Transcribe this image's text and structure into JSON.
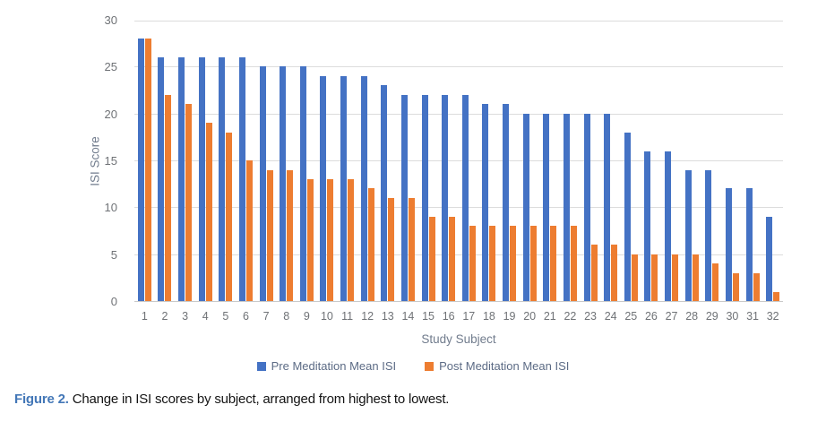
{
  "figure": {
    "label": "Figure 2.",
    "caption": "Change in ISI scores by subject, arranged from highest to lowest."
  },
  "chart_data": {
    "type": "bar",
    "title": "",
    "xlabel": "Study Subject",
    "ylabel": "ISI Score",
    "ylim": [
      0,
      30
    ],
    "yticks": [
      0,
      5,
      10,
      15,
      20,
      25,
      30
    ],
    "grid": true,
    "legend_position": "bottom",
    "categories": [
      1,
      2,
      3,
      4,
      5,
      6,
      7,
      8,
      9,
      10,
      11,
      12,
      13,
      14,
      15,
      16,
      17,
      18,
      19,
      20,
      21,
      22,
      23,
      24,
      25,
      26,
      27,
      28,
      29,
      30,
      31,
      32
    ],
    "series": [
      {
        "name": "Pre Meditation Mean ISI",
        "color": "#4472C4",
        "values": [
          28,
          26,
          26,
          26,
          26,
          26,
          25,
          25,
          25,
          24,
          24,
          24,
          23,
          22,
          22,
          22,
          22,
          21,
          21,
          20,
          20,
          20,
          20,
          20,
          18,
          16,
          16,
          14,
          14,
          12,
          12,
          9
        ]
      },
      {
        "name": "Post Meditation Mean ISI",
        "color": "#ED7D31",
        "values": [
          28,
          22,
          21,
          19,
          18,
          15,
          14,
          14,
          13,
          13,
          13,
          12,
          11,
          11,
          9,
          9,
          8,
          8,
          8,
          8,
          8,
          8,
          6,
          6,
          5,
          5,
          5,
          5,
          4,
          3,
          3,
          1
        ]
      }
    ]
  },
  "colors": {
    "gridline": "#dcdcdc",
    "axis_line": "#c9c9c9",
    "tick_text": "#6f7276",
    "axis_title_text": "#717c8d",
    "legend_text": "#5c6b85",
    "figure_label": "#4377b7"
  }
}
